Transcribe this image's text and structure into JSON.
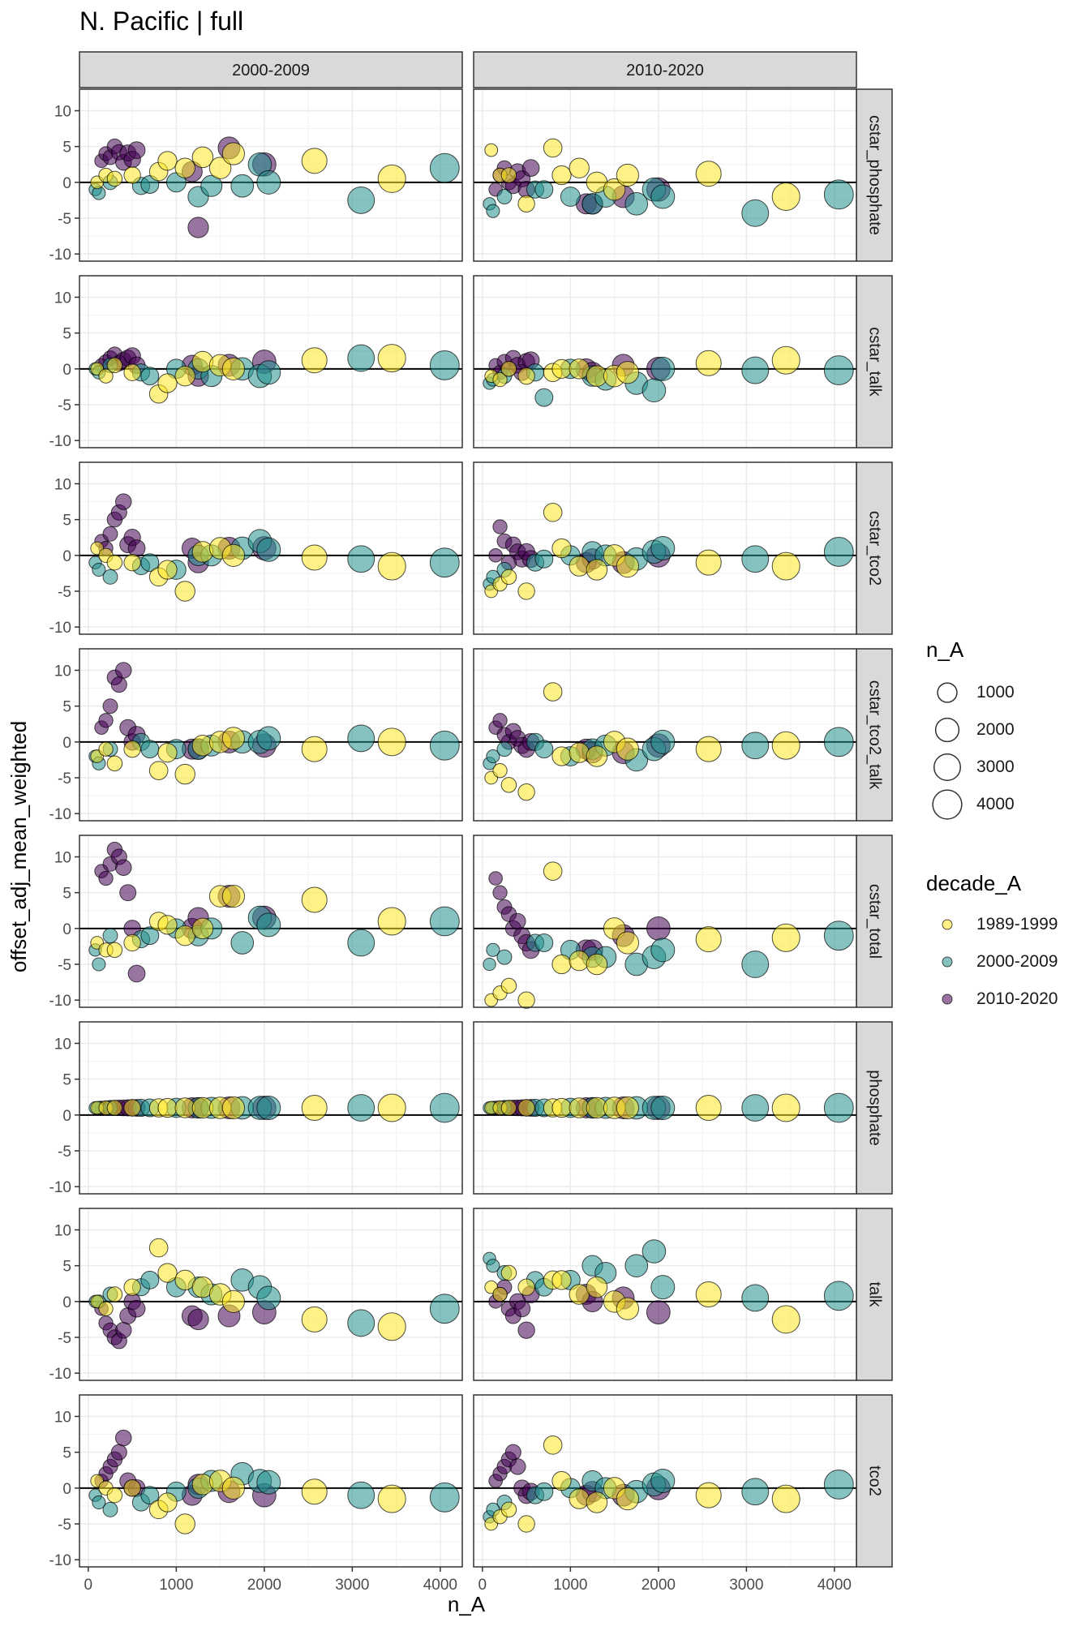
{
  "chart_data": {
    "type": "scatter",
    "title": "N. Pacific | full",
    "xlabel": "n_A",
    "ylabel": "offset_adj_mean_weighted",
    "xlim": [
      -100,
      4250
    ],
    "ylim": [
      -11,
      13
    ],
    "x_ticks": [
      0,
      1000,
      2000,
      3000,
      4000
    ],
    "x_tick_labels": [
      "0",
      "1000",
      "2000",
      "3000",
      "4000"
    ],
    "y_ticks": [
      -10,
      -5,
      0,
      5,
      10
    ],
    "y_tick_labels": [
      "-10",
      "-5",
      "0",
      "5",
      "10"
    ],
    "reference_line_y": 0,
    "facet_columns": [
      "2000-2009",
      "2010-2020"
    ],
    "facet_rows": [
      "cstar_phosphate",
      "cstar_talk",
      "cstar_tco2",
      "cstar_tco2_talk",
      "cstar_total",
      "phosphate",
      "talk",
      "tco2"
    ],
    "size_legend": {
      "title": "n_A",
      "values": [
        1000,
        2000,
        3000,
        4000
      ],
      "labels": [
        "1000",
        "2000",
        "3000",
        "4000"
      ]
    },
    "color_legend": {
      "title": "decade_A",
      "labels": [
        "1989-1999",
        "2000-2009",
        "2010-2020"
      ],
      "colors": [
        "#FDE725",
        "#21908C",
        "#440154"
      ]
    },
    "marker_opacity": 0.55,
    "series": [
      {
        "name": "2010-2020",
        "color_index": 2,
        "x": [
          150,
          200,
          250,
          300,
          350,
          400,
          450,
          500,
          550,
          1180,
          1250,
          1600,
          2000
        ]
      },
      {
        "name": "2000-2009",
        "color_index": 1,
        "x": [
          80,
          120,
          250,
          600,
          700,
          1000,
          1250,
          1400,
          1750,
          1950,
          2050,
          3100,
          4050
        ]
      },
      {
        "name": "1989-1999",
        "color_index": 0,
        "x": [
          100,
          200,
          300,
          500,
          800,
          900,
          1100,
          1300,
          1500,
          1650,
          2570,
          3450
        ]
      }
    ],
    "panels": [
      {
        "row": "cstar_phosphate",
        "col": "2000-2009",
        "y": [
          [
            3,
            4,
            3.5,
            5,
            4.2,
            2.8,
            4.1,
            3.2,
            4.5,
            1.5,
            -6.3,
            4.8,
            2.5
          ],
          [
            -1,
            -1.5,
            0,
            -0.5,
            -0.3,
            0,
            -2,
            -0.5,
            -0.5,
            2.5,
            0,
            -2.5,
            2
          ],
          [
            0,
            1,
            0.5,
            1,
            1.5,
            3,
            2,
            3.5,
            2,
            4,
            3,
            0.5
          ]
        ]
      },
      {
        "row": "cstar_phosphate",
        "col": "2010-2020",
        "y": [
          [
            -1,
            1,
            2,
            0,
            -0.5,
            1.5,
            0.5,
            -1,
            2,
            -3,
            -3,
            -2,
            -1
          ],
          [
            -3,
            -4,
            -2,
            -1,
            -1,
            -2,
            -3,
            -2,
            -3,
            -1,
            -2,
            -4.3,
            -1.7
          ],
          [
            4.5,
            1,
            1,
            -3,
            4.8,
            1,
            2,
            0,
            -1,
            1,
            1.2,
            -2
          ]
        ]
      },
      {
        "row": "cstar_talk",
        "col": "2000-2009",
        "y": [
          [
            0.5,
            1,
            1.5,
            2,
            0.8,
            1.2,
            1.5,
            1.8,
            0.5,
            0.5,
            -1,
            0.5,
            1
          ],
          [
            0,
            -0.5,
            0.5,
            -0.5,
            -1,
            0,
            0,
            -1,
            0,
            -1,
            -0.5,
            1.5,
            0.5
          ],
          [
            0,
            -1,
            0.5,
            -0.5,
            -3.5,
            -2,
            -1,
            1,
            0.5,
            0,
            1.2,
            1.5
          ]
        ]
      },
      {
        "row": "cstar_talk",
        "col": "2010-2020",
        "y": [
          [
            0.5,
            -0.5,
            1,
            0,
            1.5,
            0.5,
            -0.5,
            1,
            1.2,
            0,
            -0.5,
            0.5,
            0
          ],
          [
            -2,
            -1.5,
            -1,
            -0.5,
            -4,
            0,
            -1,
            -1.5,
            -2,
            -3,
            0,
            -0.2,
            -0.2
          ],
          [
            -1,
            -1.5,
            0,
            -1,
            -0.5,
            0,
            0,
            -1,
            -1,
            -0.5,
            0.8,
            1.2
          ]
        ]
      },
      {
        "row": "cstar_tco2",
        "col": "2000-2009",
        "y": [
          [
            2,
            1,
            3,
            5,
            6,
            7.5,
            1.5,
            2.5,
            1,
            1,
            -1,
            1,
            1
          ],
          [
            -1,
            -2,
            -3,
            -1.5,
            -1,
            -2,
            0,
            0,
            1,
            2,
            0.8,
            -0.5,
            -1
          ],
          [
            1,
            0,
            -1,
            -1,
            -3,
            -2,
            -5,
            0.5,
            1,
            0,
            -0.3,
            -1.5
          ]
        ]
      },
      {
        "row": "cstar_tco2",
        "col": "2010-2020",
        "y": [
          [
            0,
            4,
            2,
            -1,
            1.5,
            0.5,
            -0.5,
            0.5,
            -0.5,
            -1,
            -0.5,
            -1,
            0
          ],
          [
            -4,
            -3,
            -2,
            -1,
            -0.5,
            0,
            0.5,
            0,
            -0.5,
            0.5,
            1,
            -0.5,
            0.5
          ],
          [
            -5,
            -4,
            -3,
            -5,
            6,
            1,
            -1.5,
            -2,
            0,
            -1.5,
            -1,
            -1.5
          ]
        ]
      },
      {
        "row": "cstar_tco2_talk",
        "col": "2000-2009",
        "y": [
          [
            2,
            3,
            5,
            9,
            8,
            10,
            2,
            0,
            1,
            -1,
            -1,
            0,
            -0.5
          ],
          [
            -2,
            -3,
            -1,
            0,
            -1,
            -1,
            -1,
            -0.5,
            0,
            0,
            0.5,
            0.5,
            -0.5
          ],
          [
            -2,
            -1,
            -3,
            -1,
            -4,
            -1.5,
            -4.5,
            -0.5,
            0,
            0.5,
            -1,
            0
          ]
        ]
      },
      {
        "row": "cstar_tco2_talk",
        "col": "2010-2020",
        "y": [
          [
            2,
            3,
            1,
            0,
            1.5,
            0.5,
            -0.5,
            -1,
            0,
            -1,
            -1.5,
            -1.5,
            -0.5
          ],
          [
            -3,
            -2,
            -1,
            0,
            -1,
            -2,
            -1,
            -0.5,
            -2.5,
            -1,
            0,
            -0.5,
            0
          ],
          [
            -5,
            -4,
            -6,
            -7,
            7,
            -2,
            -1.5,
            -2,
            0,
            -1,
            -1,
            -0.5
          ]
        ]
      },
      {
        "row": "cstar_total",
        "col": "2000-2009",
        "y": [
          [
            8,
            7,
            9,
            11,
            10,
            8.5,
            5,
            0,
            -6.3,
            0,
            1.5,
            4.5,
            1.5
          ],
          [
            -3,
            -5,
            -1,
            -1.5,
            -1,
            0,
            -1,
            0,
            -2,
            1.5,
            0.5,
            -2,
            1
          ],
          [
            -2,
            -3,
            -3,
            -2,
            1,
            0.5,
            -1,
            0,
            4.5,
            4.5,
            4,
            1
          ]
        ]
      },
      {
        "row": "cstar_total",
        "col": "2010-2020",
        "y": [
          [
            7,
            5,
            3,
            2,
            0,
            1,
            -1,
            -2,
            -3,
            -3,
            -3,
            -1,
            0
          ],
          [
            -5,
            -3,
            -4,
            -2,
            -2,
            -3,
            -4,
            -4,
            -5,
            -4,
            -3,
            -5,
            -1
          ],
          [
            -10,
            -9,
            -8,
            -10,
            8,
            -5,
            -4.5,
            -5,
            0,
            -2,
            -1.5,
            -1.3
          ]
        ]
      },
      {
        "row": "phosphate",
        "col": "2000-2009",
        "y": [
          [
            1,
            1,
            1,
            1,
            1,
            1,
            1,
            1,
            1,
            1,
            1,
            1,
            1
          ],
          [
            1,
            1,
            1,
            1,
            1,
            1,
            1,
            1,
            1,
            1,
            1,
            1,
            1
          ],
          [
            1,
            1,
            1,
            1,
            1,
            1,
            1,
            1,
            1,
            1,
            1,
            1
          ]
        ]
      },
      {
        "row": "phosphate",
        "col": "2010-2020",
        "y": [
          [
            1,
            1,
            1,
            1,
            1,
            1,
            1,
            1,
            1,
            1,
            1,
            1,
            1
          ],
          [
            1,
            1,
            1,
            1,
            1,
            1,
            1,
            1,
            1,
            1,
            1,
            1,
            1
          ],
          [
            1,
            1,
            1,
            1,
            1,
            1,
            1,
            1,
            1,
            1,
            1,
            1
          ]
        ]
      },
      {
        "row": "talk",
        "col": "2000-2009",
        "y": [
          [
            -1,
            -3,
            -4,
            -5,
            -5.5,
            -4,
            -2,
            0,
            -1,
            -2,
            -2.5,
            -2,
            -1.5
          ],
          [
            0,
            0,
            1,
            2,
            3,
            2,
            2,
            1,
            3,
            2,
            0.5,
            -3,
            -1
          ],
          [
            0,
            -1,
            1,
            2,
            7.5,
            4,
            3,
            2,
            1,
            0,
            -2.5,
            -3.5
          ]
        ]
      },
      {
        "row": "talk",
        "col": "2010-2020",
        "y": [
          [
            0,
            1,
            2,
            -1,
            -2,
            0,
            -1,
            -4,
            1,
            1,
            0,
            0.5,
            -1.5
          ],
          [
            6,
            5,
            4,
            3,
            2,
            3,
            5,
            4,
            5,
            7,
            2,
            0.5,
            0.8
          ],
          [
            2,
            1,
            4,
            2,
            3,
            3,
            1,
            2,
            0,
            -1,
            1,
            -2.5
          ]
        ]
      },
      {
        "row": "tco2",
        "col": "2000-2009",
        "y": [
          [
            1,
            2,
            3,
            4,
            5,
            7,
            1,
            0,
            0,
            -1,
            0.5,
            -0.5,
            -1
          ],
          [
            -1,
            -2,
            -3,
            -2,
            -1,
            -0.5,
            0,
            1,
            2,
            1,
            0.8,
            -1,
            -1.3
          ],
          [
            1,
            0,
            -1,
            0,
            -3,
            -2,
            -5,
            0.5,
            1,
            0,
            -0.5,
            -1.5
          ]
        ]
      },
      {
        "row": "tco2",
        "col": "2010-2020",
        "y": [
          [
            1,
            2,
            3,
            4,
            5,
            3,
            0,
            -1,
            -0.5,
            -1,
            -0.5,
            -1,
            0
          ],
          [
            -4,
            -3,
            -2,
            -1,
            -0.5,
            0,
            1,
            0,
            -0.5,
            0.5,
            1,
            -0.5,
            0.5
          ],
          [
            -5,
            -4,
            -3,
            -5,
            6,
            1,
            -1.5,
            -2,
            0,
            -1.5,
            -1,
            -1.5
          ]
        ]
      }
    ]
  }
}
